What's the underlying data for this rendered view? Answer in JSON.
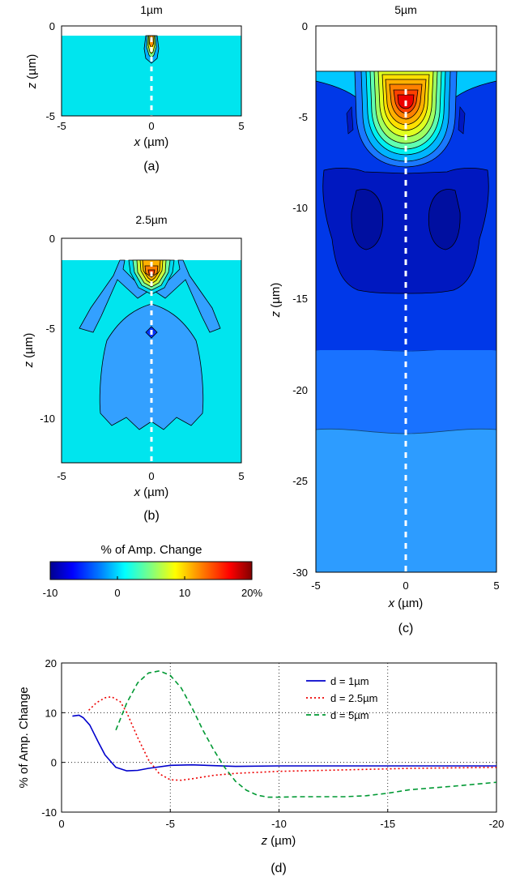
{
  "chart_data": [
    {
      "panel": "a",
      "type": "heatmap",
      "title": "1µm",
      "caption": "(a)",
      "xlabel_var": "x",
      "xlabel_unit": "(µm)",
      "ylabel_var": "z",
      "ylabel_unit": "(µm)",
      "xlim": [
        -5,
        5
      ],
      "ylim": [
        -5,
        0
      ],
      "xticks": [
        "-5",
        "0",
        "5"
      ],
      "yticks": [
        "0",
        "-5"
      ],
      "surface_z": -0.5,
      "peak": {
        "x": 0,
        "z": -0.9,
        "value": 9.5
      }
    },
    {
      "panel": "b",
      "type": "heatmap",
      "title": "2.5µm",
      "caption": "(b)",
      "xlabel_var": "x",
      "xlabel_unit": "(µm)",
      "ylabel_var": "z",
      "ylabel_unit": "(µm)",
      "xlim": [
        -5,
        5
      ],
      "ylim": [
        -12.5,
        0
      ],
      "xticks": [
        "-5",
        "0",
        "5"
      ],
      "yticks": [
        "0",
        "-5",
        "-10"
      ],
      "surface_z": -1.25,
      "peak": {
        "x": 0,
        "z": -2.2,
        "value": 13
      }
    },
    {
      "panel": "c",
      "type": "heatmap",
      "title": "5µm",
      "caption": "(c)",
      "xlabel_var": "x",
      "xlabel_unit": "(µm)",
      "ylabel_var": "z",
      "ylabel_unit": "(µm)",
      "xlim": [
        -5,
        5
      ],
      "ylim": [
        -30,
        0
      ],
      "xticks": [
        "-5",
        "0",
        "5"
      ],
      "yticks": [
        "0",
        "-5",
        "-10",
        "-15",
        "-20",
        "-25",
        "-30"
      ],
      "surface_z": -2.5,
      "peak": {
        "x": 0,
        "z": -4.5,
        "value": 18.5
      }
    },
    {
      "panel": "d",
      "type": "line",
      "caption": "(d)",
      "xlabel_var": "z",
      "xlabel_unit": "(µm)",
      "ylabel": "% of Amp. Change",
      "xlim": [
        0,
        -20
      ],
      "ylim": [
        -10,
        20
      ],
      "xticks": [
        "0",
        "-5",
        "-10",
        "-15",
        "-20"
      ],
      "yticks": [
        "20",
        "10",
        "0",
        "-10"
      ],
      "grid": true,
      "legend": "top-right",
      "series": [
        {
          "name": "d = 1µm",
          "color": "#0000cc",
          "dash": "solid",
          "x": [
            -0.5,
            -0.8,
            -1.0,
            -1.3,
            -1.7,
            -2.0,
            -2.5,
            -3.0,
            -3.5,
            -4.0,
            -5.0,
            -6.0,
            -8.0,
            -10.0,
            -13.0,
            -16.0,
            -20.0
          ],
          "y": [
            9.3,
            9.5,
            9.0,
            7.5,
            4.0,
            1.5,
            -1.0,
            -1.7,
            -1.6,
            -1.2,
            -0.6,
            -0.5,
            -0.8,
            -0.7,
            -0.7,
            -0.7,
            -0.7
          ]
        },
        {
          "name": "d = 2.5µm",
          "color": "#ee0000",
          "dash": "dotted",
          "x": [
            -1.25,
            -1.6,
            -2.0,
            -2.3,
            -2.7,
            -3.0,
            -3.5,
            -4.0,
            -4.5,
            -5.0,
            -5.5,
            -6.0,
            -7.0,
            -8.0,
            -10.0,
            -13.0,
            -16.0,
            -20.0
          ],
          "y": [
            10.5,
            12.0,
            13.0,
            13.2,
            12.2,
            10.0,
            5.0,
            0.5,
            -2.3,
            -3.5,
            -3.6,
            -3.3,
            -2.6,
            -2.2,
            -1.8,
            -1.5,
            -1.2,
            -1.0
          ]
        },
        {
          "name": "d = 5µm",
          "color": "#009933",
          "dash": "dashed",
          "x": [
            -2.5,
            -3.0,
            -3.5,
            -4.0,
            -4.5,
            -5.0,
            -5.5,
            -6.0,
            -6.5,
            -7.0,
            -7.5,
            -8.0,
            -8.5,
            -9.0,
            -9.5,
            -10.0,
            -11.0,
            -12.0,
            -13.0,
            -14.0,
            -15.0,
            -16.0,
            -18.0,
            -20.0
          ],
          "y": [
            6.5,
            12.0,
            16.0,
            18.0,
            18.4,
            17.5,
            15.0,
            11.0,
            6.5,
            2.5,
            -1.0,
            -3.8,
            -5.6,
            -6.6,
            -7.0,
            -7.0,
            -6.9,
            -6.9,
            -6.9,
            -6.7,
            -6.2,
            -5.5,
            -4.8,
            -4.0
          ]
        }
      ]
    }
  ],
  "colorbar": {
    "title": "% of Amp. Change",
    "min": -10,
    "max": 20,
    "ticks": [
      {
        "value": -10,
        "label": "-10"
      },
      {
        "value": 0,
        "label": "0"
      },
      {
        "value": 10,
        "label": "10"
      },
      {
        "value": 20,
        "label": "20%"
      }
    ]
  },
  "colors": {
    "background_level": "#00e5ee",
    "jet_stops": [
      "#00008f",
      "#0000ff",
      "#0080ff",
      "#00ffff",
      "#80ff80",
      "#ffff00",
      "#ff8000",
      "#ff0000",
      "#800000"
    ],
    "centerline": "#ffffff"
  }
}
